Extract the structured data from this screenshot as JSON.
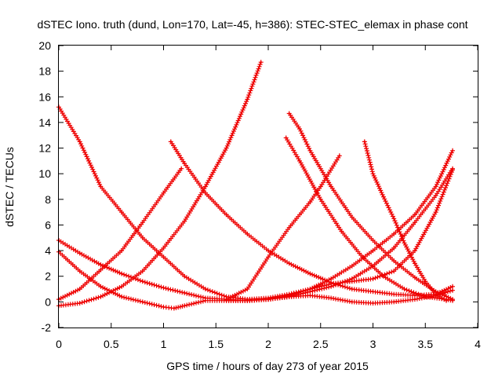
{
  "chart_data": {
    "type": "scatter",
    "title": "dSTEC Iono. truth (dund, Lon=170, Lat=-45, h=386): STEC-STEC_elemax in phase cont",
    "xlabel": "GPS time / hours of day 273 of year 2015",
    "ylabel": "dSTEC  / TECUs",
    "xlim": [
      0,
      4
    ],
    "ylim": [
      -2,
      20
    ],
    "xticks": [
      "0",
      "0.5",
      "1",
      "1.5",
      "2",
      "2.5",
      "3",
      "3.5",
      "4"
    ],
    "yticks": [
      "-2",
      "0",
      "2",
      "4",
      "6",
      "8",
      "10",
      "12",
      "14",
      "16",
      "18",
      "20"
    ],
    "marker": "plus",
    "color": "#ee0000",
    "grid": false,
    "series": [
      {
        "x": [
          0.0,
          0.2,
          0.4,
          0.6,
          0.8,
          1.0,
          1.2,
          1.4,
          1.6,
          1.8,
          2.0,
          2.2,
          2.4,
          2.6,
          2.8,
          3.0,
          3.2,
          3.4,
          3.6,
          3.76
        ],
        "y": [
          15.2,
          12.5,
          9.0,
          7.0,
          5.0,
          3.5,
          2.0,
          1.0,
          0.4,
          0.2,
          0.3,
          0.6,
          1.0,
          1.4,
          1.6,
          1.8,
          2.4,
          4.0,
          7.0,
          10.3
        ]
      },
      {
        "x": [
          0.0,
          0.2,
          0.4,
          0.6,
          0.8,
          1.0,
          1.2,
          1.4,
          1.6,
          1.8,
          1.93
        ],
        "y": [
          -0.3,
          -0.1,
          0.4,
          1.2,
          2.4,
          4.2,
          6.3,
          9.0,
          12.0,
          15.8,
          18.7
        ]
      },
      {
        "x": [
          0.0,
          0.2,
          0.4,
          0.6,
          0.8,
          1.0,
          1.2,
          1.4,
          1.6,
          1.8,
          2.0,
          2.2,
          2.4,
          2.6,
          2.8,
          3.0,
          3.2,
          3.4,
          3.6,
          3.76
        ],
        "y": [
          4.8,
          3.8,
          2.9,
          2.2,
          1.6,
          1.1,
          0.7,
          0.3,
          0.2,
          0.1,
          0.2,
          0.5,
          1.0,
          1.8,
          2.8,
          4.0,
          5.3,
          6.8,
          9.0,
          11.8
        ]
      },
      {
        "x": [
          0.0,
          0.2,
          0.4,
          0.6,
          0.8,
          1.0,
          1.17
        ],
        "y": [
          0.2,
          1.0,
          2.5,
          4.0,
          6.2,
          8.5,
          10.4
        ]
      },
      {
        "x": [
          0.0,
          0.2,
          0.4,
          0.6,
          0.8,
          1.0,
          1.1,
          1.2,
          1.4,
          1.6,
          1.8,
          2.0,
          2.2,
          2.4,
          2.6,
          2.8,
          3.0,
          3.2,
          3.4,
          3.6,
          3.76
        ],
        "y": [
          3.9,
          2.4,
          1.2,
          0.4,
          0.0,
          -0.4,
          -0.5,
          -0.3,
          0.1,
          0.1,
          0.1,
          0.2,
          0.4,
          0.8,
          1.2,
          1.8,
          2.8,
          4.2,
          6.2,
          8.3,
          10.4
        ]
      },
      {
        "x": [
          1.07,
          1.2,
          1.4,
          1.6,
          1.8,
          2.0,
          2.2,
          2.4,
          2.6,
          2.8,
          3.0,
          3.2,
          3.4,
          3.6,
          3.76
        ],
        "y": [
          12.5,
          10.8,
          8.5,
          6.8,
          5.3,
          4.0,
          3.0,
          2.2,
          1.5,
          1.0,
          0.8,
          0.6,
          0.5,
          0.6,
          1.2
        ]
      },
      {
        "x": [
          1.6,
          1.8,
          2.0,
          2.2,
          2.4,
          2.5,
          2.68
        ],
        "y": [
          0.2,
          1.0,
          3.5,
          5.8,
          7.8,
          9.0,
          11.4
        ]
      },
      {
        "x": [
          2.2,
          2.3,
          2.4,
          2.6,
          2.8,
          3.0,
          3.2,
          3.4,
          3.6,
          3.76
        ],
        "y": [
          14.7,
          13.5,
          11.8,
          9.0,
          6.6,
          4.8,
          3.2,
          1.9,
          0.8,
          0.2
        ]
      },
      {
        "x": [
          2.17,
          2.3,
          2.5,
          2.7,
          2.9,
          3.1,
          3.3,
          3.5,
          3.7,
          3.76
        ],
        "y": [
          12.8,
          11.0,
          8.0,
          5.5,
          3.5,
          2.0,
          1.0,
          0.4,
          0.2,
          0.1
        ]
      },
      {
        "x": [
          1.6,
          1.8,
          2.0,
          2.2,
          2.4,
          2.6,
          2.8,
          3.0,
          3.2,
          3.4,
          3.6,
          3.76
        ],
        "y": [
          0.1,
          0.1,
          0.2,
          0.4,
          0.5,
          0.3,
          0.0,
          -0.1,
          0.0,
          0.2,
          0.5,
          0.9
        ]
      },
      {
        "x": [
          2.92,
          3.0,
          3.1,
          3.2,
          3.3,
          3.4,
          3.5,
          3.6,
          3.7
        ],
        "y": [
          12.5,
          10.0,
          8.2,
          6.5,
          4.6,
          3.0,
          1.6,
          0.6,
          0.1
        ]
      }
    ]
  }
}
